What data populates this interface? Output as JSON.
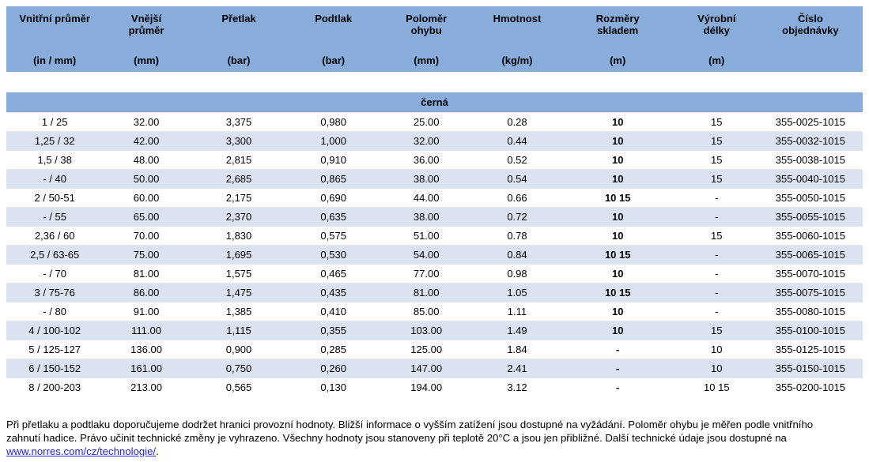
{
  "colors": {
    "header_bg": "#88ADDB",
    "stripe_bg": "#DBE3F1",
    "link": "#2626CC",
    "row_divider": "#e6e6e6"
  },
  "table": {
    "columns": [
      {
        "title": "Vnitřní průměr",
        "unit": "(in / mm)",
        "width_pct": 11.3
      },
      {
        "title": "Vnější\nprůměr",
        "unit": "(mm)",
        "width_pct": 10.1
      },
      {
        "title": "Přetlak",
        "unit": "(bar)",
        "width_pct": 11.5
      },
      {
        "title": "Podtlak",
        "unit": "(bar)",
        "width_pct": 10.6
      },
      {
        "title": "Poloměr\nohybu",
        "unit": "(mm)",
        "width_pct": 11.1
      },
      {
        "title": "Hmotnost",
        "unit": "(kg/m)",
        "width_pct": 10.1
      },
      {
        "title": "Rozměry\nskladem",
        "unit": "(m)",
        "width_pct": 13.4,
        "bold_values": true
      },
      {
        "title": "Výrobní\ndélky",
        "unit": "(m)",
        "width_pct": 9.7
      },
      {
        "title": "Číslo\nobjednávky",
        "unit": "",
        "width_pct": 12.2
      }
    ],
    "section_label": "černá",
    "rows": [
      [
        "1 / 25",
        "32.00",
        "3,375",
        "0,980",
        "25.00",
        "0.28",
        "10",
        "15",
        "355-0025-1015"
      ],
      [
        "1,25 / 32",
        "42.00",
        "3,300",
        "1,000",
        "32.00",
        "0.44",
        "10",
        "15",
        "355-0032-1015"
      ],
      [
        "1,5 / 38",
        "48.00",
        "2,815",
        "0,910",
        "36.00",
        "0.52",
        "10",
        "15",
        "355-0038-1015"
      ],
      [
        "- / 40",
        "50.00",
        "2,685",
        "0,865",
        "38.00",
        "0.54",
        "10",
        "15",
        "355-0040-1015"
      ],
      [
        "2 / 50-51",
        "60.00",
        "2,175",
        "0,690",
        "44.00",
        "0.66",
        "10 15",
        "-",
        "355-0050-1015"
      ],
      [
        "- / 55",
        "65.00",
        "2,370",
        "0,635",
        "38.00",
        "0.72",
        "10",
        "-",
        "355-0055-1015"
      ],
      [
        "2,36 / 60",
        "70.00",
        "1,830",
        "0,575",
        "51.00",
        "0.78",
        "10",
        "15",
        "355-0060-1015"
      ],
      [
        "2,5 / 63-65",
        "75.00",
        "1,695",
        "0,530",
        "54.00",
        "0.84",
        "10 15",
        "-",
        "355-0065-1015"
      ],
      [
        "- / 70",
        "81.00",
        "1,575",
        "0,465",
        "77.00",
        "0.98",
        "10",
        "-",
        "355-0070-1015"
      ],
      [
        "3 / 75-76",
        "86.00",
        "1,475",
        "0,435",
        "81.00",
        "1.05",
        "10 15",
        "-",
        "355-0075-1015"
      ],
      [
        "- / 80",
        "91.00",
        "1,385",
        "0,410",
        "85.00",
        "1.11",
        "10",
        "-",
        "355-0080-1015"
      ],
      [
        "4 / 100-102",
        "111.00",
        "1,115",
        "0,355",
        "103.00",
        "1.49",
        "10",
        "15",
        "355-0100-1015"
      ],
      [
        "5 / 125-127",
        "136.00",
        "0,900",
        "0,285",
        "125.00",
        "1.84",
        "-",
        "10",
        "355-0125-1015"
      ],
      [
        "6 / 150-152",
        "161.00",
        "0,750",
        "0,260",
        "147.00",
        "2.41",
        "-",
        "10",
        "355-0150-1015"
      ],
      [
        "8 / 200-203",
        "213.00",
        "0,565",
        "0,130",
        "194.00",
        "3.12",
        "-",
        "10 15",
        "355-0200-1015"
      ]
    ]
  },
  "footer": {
    "line1": "Při přetlaku a podtlaku doporučujeme dodržet hranici provozní hodnoty. Bližší informace o vyšším zatížení jsou dostupné na vyžádání. Poloměr ohybu je měřen podle vnitřního",
    "line2": "zahnutí hadice. Právo učinit technické změny je vyhrazeno. Všechny hodnoty jsou stanoveny při teplotě 20°C a jsou jen přibližné. Další technické údaje jsou dostupné na",
    "link_text": "www.norres.com/cz/technologie/",
    "after_link": "."
  }
}
